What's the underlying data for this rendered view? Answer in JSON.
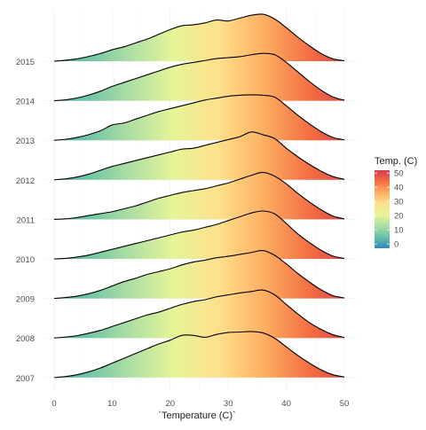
{
  "chart_data": {
    "type": "area",
    "subtype": "ridgeline",
    "xlabel": "`Temperature (C)`",
    "ylabel": "",
    "title": "",
    "xlim": [
      0,
      52
    ],
    "x_ticks": [
      0,
      10,
      20,
      30,
      40,
      50
    ],
    "categories": [
      "2007",
      "2008",
      "2009",
      "2010",
      "2011",
      "2012",
      "2013",
      "2014",
      "2015"
    ],
    "grid": "light",
    "legend": {
      "title": "Temp. (C)",
      "position": "right",
      "ticks": [
        50,
        40,
        30,
        20,
        10,
        0
      ]
    },
    "color_scale": {
      "domain": [
        -3,
        52
      ],
      "colors": [
        "#3288bd",
        "#66c2a5",
        "#abdda4",
        "#e6f598",
        "#fee08b",
        "#fdae61",
        "#f46d43",
        "#d53e4f"
      ]
    },
    "x": [
      0,
      2,
      4,
      6,
      8,
      10,
      12,
      14,
      16,
      18,
      20,
      22,
      24,
      26,
      28,
      30,
      32,
      34,
      36,
      38,
      40,
      42,
      44,
      46,
      48,
      50
    ],
    "series": [
      {
        "name": "2007",
        "values": [
          0.0,
          0.02,
          0.06,
          0.12,
          0.2,
          0.3,
          0.4,
          0.5,
          0.6,
          0.7,
          0.78,
          0.88,
          0.88,
          0.84,
          0.9,
          0.94,
          0.95,
          0.96,
          0.93,
          0.82,
          0.64,
          0.46,
          0.3,
          0.16,
          0.06,
          0.01
        ]
      },
      {
        "name": "2008",
        "values": [
          0.0,
          0.02,
          0.05,
          0.1,
          0.16,
          0.24,
          0.32,
          0.4,
          0.48,
          0.54,
          0.62,
          0.7,
          0.76,
          0.8,
          0.86,
          0.9,
          0.94,
          0.97,
          1.0,
          0.9,
          0.7,
          0.5,
          0.32,
          0.18,
          0.07,
          0.01
        ]
      },
      {
        "name": "2009",
        "values": [
          0.0,
          0.02,
          0.05,
          0.1,
          0.17,
          0.26,
          0.35,
          0.42,
          0.5,
          0.56,
          0.62,
          0.7,
          0.76,
          0.8,
          0.85,
          0.88,
          0.92,
          0.96,
          1.0,
          0.9,
          0.72,
          0.52,
          0.34,
          0.18,
          0.06,
          0.01
        ]
      },
      {
        "name": "2010",
        "values": [
          0.0,
          0.01,
          0.04,
          0.08,
          0.14,
          0.2,
          0.26,
          0.32,
          0.38,
          0.44,
          0.5,
          0.56,
          0.6,
          0.66,
          0.72,
          0.8,
          0.88,
          0.96,
          1.0,
          0.94,
          0.74,
          0.52,
          0.34,
          0.18,
          0.06,
          0.01
        ]
      },
      {
        "name": "2011",
        "values": [
          0.0,
          0.01,
          0.04,
          0.08,
          0.12,
          0.16,
          0.22,
          0.28,
          0.36,
          0.44,
          0.5,
          0.56,
          0.6,
          0.64,
          0.7,
          0.76,
          0.84,
          0.92,
          0.98,
          0.9,
          0.74,
          0.54,
          0.36,
          0.2,
          0.07,
          0.01
        ]
      },
      {
        "name": "2012",
        "values": [
          0.0,
          0.02,
          0.06,
          0.12,
          0.2,
          0.28,
          0.34,
          0.4,
          0.46,
          0.52,
          0.58,
          0.64,
          0.66,
          0.72,
          0.78,
          0.84,
          0.9,
          1.0,
          0.94,
          0.86,
          0.66,
          0.48,
          0.32,
          0.18,
          0.07,
          0.01
        ]
      },
      {
        "name": "2013",
        "values": [
          0.0,
          0.02,
          0.06,
          0.12,
          0.2,
          0.32,
          0.36,
          0.44,
          0.52,
          0.6,
          0.66,
          0.72,
          0.78,
          0.84,
          0.88,
          0.92,
          0.94,
          0.95,
          0.94,
          0.9,
          0.72,
          0.52,
          0.34,
          0.18,
          0.06,
          0.01
        ]
      },
      {
        "name": "2014",
        "values": [
          0.0,
          0.02,
          0.06,
          0.12,
          0.2,
          0.3,
          0.38,
          0.46,
          0.54,
          0.62,
          0.7,
          0.76,
          0.8,
          0.84,
          0.88,
          0.9,
          0.92,
          0.96,
          0.99,
          0.96,
          0.8,
          0.6,
          0.4,
          0.22,
          0.08,
          0.01
        ]
      },
      {
        "name": "2015",
        "values": [
          0.0,
          0.02,
          0.05,
          0.1,
          0.16,
          0.24,
          0.3,
          0.38,
          0.46,
          0.56,
          0.66,
          0.74,
          0.76,
          0.8,
          0.86,
          0.84,
          0.9,
          0.96,
          0.98,
          0.88,
          0.7,
          0.5,
          0.32,
          0.16,
          0.05,
          0.01
        ]
      }
    ]
  }
}
